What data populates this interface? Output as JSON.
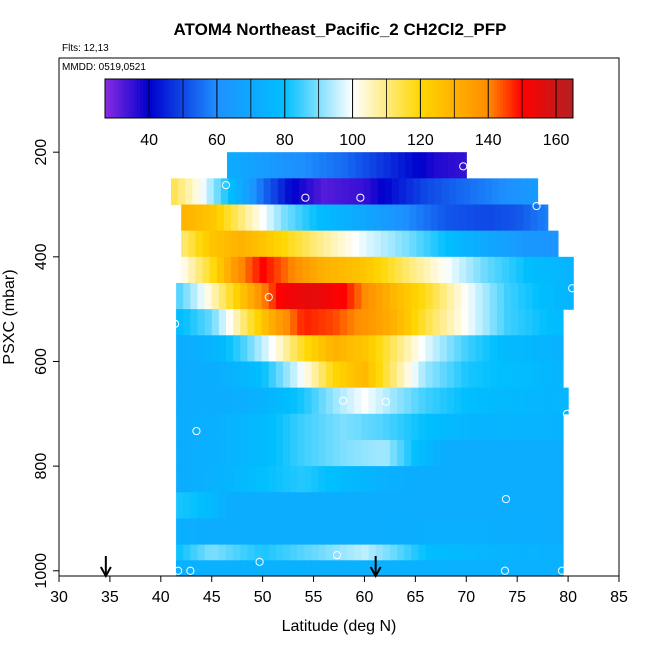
{
  "chart_data": {
    "type": "heatmap",
    "title": "ATOM4 Northeast_Pacific_2 CH2Cl2_PFP",
    "flights_label": "Flts: 12,13",
    "dates_label": "MMDD: 0519,0521",
    "xlabel": "Latitude (deg N)",
    "ylabel": "PSXC (mbar)",
    "xlim": [
      30,
      85
    ],
    "ylim": [
      1010,
      20
    ],
    "y_reversed": true,
    "x_ticks": [
      30,
      35,
      40,
      45,
      50,
      55,
      60,
      65,
      70,
      75,
      80,
      85
    ],
    "y_ticks": [
      200,
      400,
      600,
      800,
      1000
    ],
    "colorbar": {
      "range": [
        27,
        165
      ],
      "ticks": [
        40,
        60,
        80,
        100,
        120,
        140,
        160
      ],
      "colors": [
        "#8a2be2",
        "#0000cd",
        "#1e90ff",
        "#00bfff",
        "#ffffff",
        "#ffd700",
        "#ff8c00",
        "#ff0000",
        "#b22222"
      ],
      "stops": [
        27,
        40,
        60,
        80,
        100,
        120,
        140,
        150,
        165
      ]
    },
    "row_height_mbar": 50,
    "rows": [
      {
        "p": 225,
        "lat_start": 46.5,
        "lat_end": 70,
        "lats": [
          46.5,
          52,
          58,
          63,
          67,
          70
        ],
        "vals": [
          72,
          62,
          55,
          45,
          37,
          35
        ]
      },
      {
        "p": 275,
        "lat_start": 41,
        "lat_end": 77,
        "lats": [
          41,
          44,
          47,
          50,
          53,
          56,
          60,
          63,
          66,
          70,
          74,
          77
        ],
        "vals": [
          115,
          100,
          78,
          55,
          40,
          32,
          35,
          43,
          50,
          55,
          60,
          65
        ]
      },
      {
        "p": 325,
        "lat_start": 42,
        "lat_end": 78,
        "lats": [
          42,
          45,
          48,
          52,
          56,
          60,
          64,
          68,
          72,
          75,
          78
        ],
        "vals": [
          130,
          125,
          110,
          90,
          78,
          70,
          60,
          52,
          50,
          52,
          58
        ]
      },
      {
        "p": 375,
        "lat_start": 42,
        "lat_end": 79,
        "lats": [
          42,
          45,
          48,
          52,
          56,
          60,
          64,
          68,
          72,
          76,
          79
        ],
        "vals": [
          110,
          125,
          130,
          120,
          108,
          98,
          90,
          80,
          70,
          63,
          62
        ]
      },
      {
        "p": 425,
        "lat_start": 42,
        "lat_end": 80.5,
        "lats": [
          42,
          45,
          47.5,
          50,
          53,
          56,
          60,
          64,
          68,
          72,
          76,
          80.5
        ],
        "vals": [
          100,
          118,
          138,
          150,
          140,
          130,
          125,
          112,
          100,
          88,
          80,
          75
        ]
      },
      {
        "p": 475,
        "lat_start": 41.5,
        "lat_end": 80.5,
        "lats": [
          41.5,
          44,
          47,
          50,
          52,
          55,
          58,
          60,
          63,
          66,
          70,
          74,
          77,
          80.5
        ],
        "vals": [
          85,
          98,
          118,
          140,
          152,
          155,
          150,
          140,
          128,
          118,
          100,
          85,
          80,
          75
        ]
      },
      {
        "p": 525,
        "lat_start": 41.5,
        "lat_end": 79.5,
        "lats": [
          41.5,
          45,
          48,
          51,
          54,
          57,
          60,
          63,
          66,
          70,
          74,
          79.5
        ],
        "vals": [
          78,
          88,
          110,
          132,
          148,
          145,
          138,
          130,
          115,
          100,
          85,
          78
        ]
      },
      {
        "p": 575,
        "lat_start": 41.5,
        "lat_end": 79.5,
        "lats": [
          41.5,
          45,
          48,
          51,
          54,
          57,
          60,
          63,
          66,
          70,
          74,
          79.5
        ],
        "vals": [
          72,
          75,
          85,
          100,
          118,
          130,
          125,
          112,
          98,
          85,
          78,
          74
        ]
      },
      {
        "p": 625,
        "lat_start": 41.5,
        "lat_end": 79.5,
        "lats": [
          41.5,
          46,
          50,
          54,
          57,
          60,
          63,
          66,
          70,
          79.5
        ],
        "vals": [
          72,
          73,
          80,
          100,
          120,
          128,
          110,
          92,
          82,
          76
        ]
      },
      {
        "p": 675,
        "lat_start": 41.5,
        "lat_end": 80,
        "lats": [
          41.5,
          46,
          50,
          54,
          57,
          60,
          63,
          66,
          70,
          75,
          80
        ],
        "vals": [
          72,
          72,
          75,
          82,
          92,
          100,
          92,
          85,
          80,
          77,
          76
        ]
      },
      {
        "p": 725,
        "lat_start": 41.5,
        "lat_end": 79.5,
        "lats": [
          41.5,
          46,
          50,
          54,
          58,
          62,
          66,
          70,
          79.5
        ],
        "vals": [
          72,
          74,
          78,
          85,
          90,
          86,
          80,
          76,
          75
        ]
      },
      {
        "p": 775,
        "lat_start": 41.5,
        "lat_end": 79.5,
        "lats": [
          41.5,
          46,
          50,
          54,
          58,
          62,
          65,
          68,
          70,
          79.5
        ],
        "vals": [
          72,
          74,
          78,
          85,
          90,
          93,
          80,
          72,
          72,
          72
        ]
      },
      {
        "p": 825,
        "lat_start": 41.5,
        "lat_end": 79.5,
        "lats": [
          41.5,
          46,
          50,
          54,
          58,
          62,
          66,
          70,
          79.5
        ],
        "vals": [
          72,
          75,
          80,
          83,
          78,
          74,
          72,
          72,
          72
        ]
      },
      {
        "p": 875,
        "lat_start": 41.5,
        "lat_end": 79.5,
        "lats": [
          41.5,
          44,
          47,
          50,
          55,
          60,
          66,
          72,
          79.5
        ],
        "vals": [
          82,
          80,
          72,
          72,
          72,
          72,
          72,
          72,
          72
        ]
      },
      {
        "p": 925,
        "lat_start": 41.5,
        "lat_end": 79.5,
        "lats": [
          41.5,
          45,
          50,
          55,
          60,
          66,
          72,
          79.5
        ],
        "vals": [
          74,
          72,
          72,
          72,
          72,
          73,
          73,
          72
        ]
      },
      {
        "p": 975,
        "lat_start": 41.5,
        "lat_end": 79.5,
        "lats": [
          41.5,
          45,
          50,
          55,
          60,
          63,
          66,
          72,
          79.5
        ],
        "vals": [
          80,
          90,
          82,
          88,
          95,
          88,
          80,
          76,
          74
        ]
      },
      {
        "p": 1005,
        "lat_start": 41.5,
        "lat_end": 79.5,
        "lats": [
          41.5,
          50,
          60,
          70,
          79.5
        ],
        "vals": [
          74,
          74,
          74,
          74,
          74
        ]
      }
    ],
    "sample_points": [
      {
        "lat": 69.7,
        "p": 227
      },
      {
        "lat": 46.4,
        "p": 263
      },
      {
        "lat": 54.2,
        "p": 287
      },
      {
        "lat": 59.6,
        "p": 287
      },
      {
        "lat": 76.9,
        "p": 303
      },
      {
        "lat": 80.4,
        "p": 460
      },
      {
        "lat": 50.6,
        "p": 477
      },
      {
        "lat": 41.4,
        "p": 528
      },
      {
        "lat": 57.9,
        "p": 675
      },
      {
        "lat": 62.1,
        "p": 677
      },
      {
        "lat": 79.9,
        "p": 700
      },
      {
        "lat": 43.5,
        "p": 733
      },
      {
        "lat": 73.9,
        "p": 863
      },
      {
        "lat": 57.3,
        "p": 970
      },
      {
        "lat": 49.7,
        "p": 983
      },
      {
        "lat": 41.7,
        "p": 1000
      },
      {
        "lat": 42.9,
        "p": 1000
      },
      {
        "lat": 73.8,
        "p": 1000
      },
      {
        "lat": 79.4,
        "p": 1000
      }
    ],
    "arrows_lat": [
      34.6,
      61.1
    ]
  }
}
